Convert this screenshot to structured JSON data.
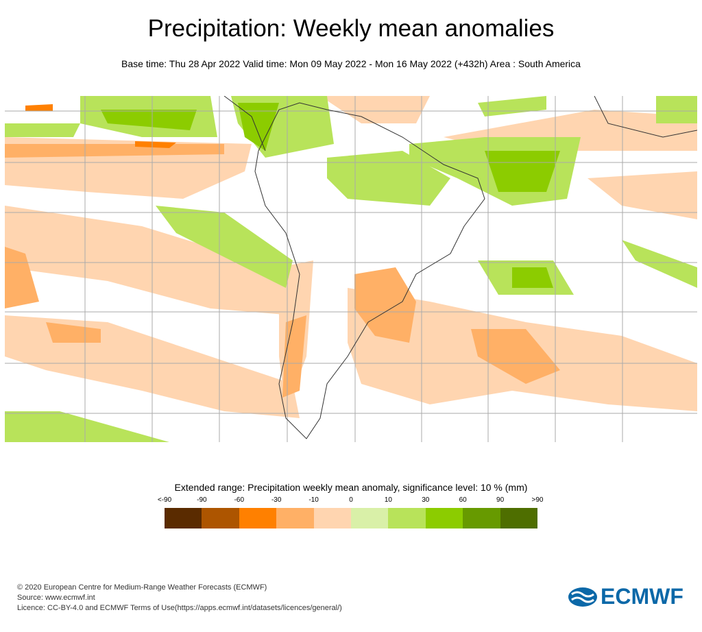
{
  "title": "Precipitation: Weekly mean anomalies",
  "subtitle": "Base time: Thu 28 Apr 2022 Valid time: Mon 09 May 2022 - Mon 16 May 2022 (+432h) Area : South America",
  "legend": {
    "title": "Extended range: Precipitation weekly mean anomaly, significance level: 10 % (mm)",
    "labels": [
      "<-90",
      "-90",
      "-60",
      "-30",
      "-10",
      "0",
      "10",
      "30",
      "60",
      "90",
      ">90"
    ],
    "colors": [
      "#5a2b00",
      "#ad5500",
      "#ff8000",
      "#ffb066",
      "#ffd5b0",
      "#d9f0a8",
      "#b8e35a",
      "#8ccc00",
      "#679a00",
      "#4e6e00"
    ]
  },
  "footer": {
    "copyright": "© 2020 European Centre for Medium-Range Weather Forecasts (ECMWF)",
    "source": "Source: www.ecmwf.int",
    "licence": "Licence: CC-BY-4.0 and ECMWF Terms of Use(https://apps.ecmwf.int/datasets/licences/general/)"
  },
  "logo": "ECMWF"
}
